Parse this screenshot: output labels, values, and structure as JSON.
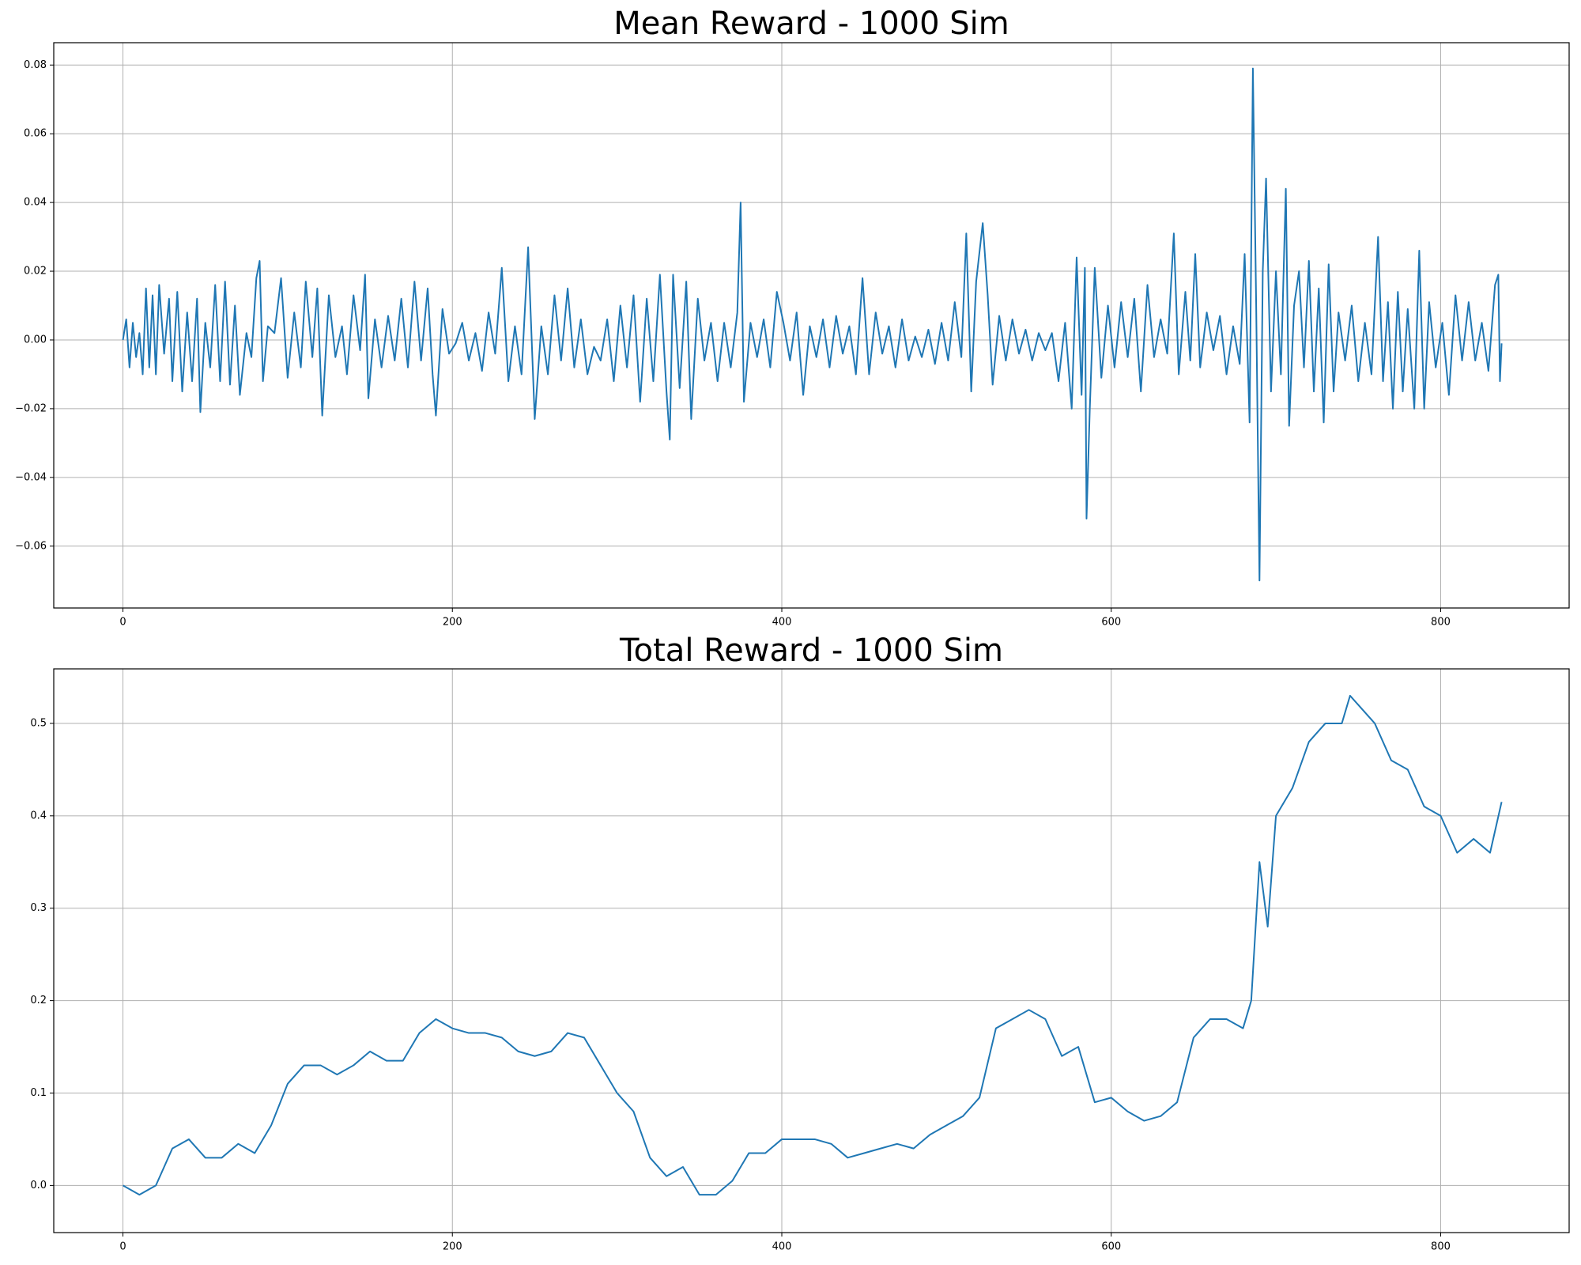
{
  "chart_data": [
    {
      "type": "line",
      "title": "Mean Reward - 1000 Sim",
      "grid": true,
      "xlim": [
        -42,
        878
      ],
      "xticks": [
        0,
        200,
        400,
        600,
        800
      ],
      "ylim": [
        -0.078,
        0.0865
      ],
      "yticks": [
        {
          "value": -0.06,
          "label": "−0.06"
        },
        {
          "value": -0.04,
          "label": "−0.04"
        },
        {
          "value": -0.02,
          "label": "−0.02"
        },
        {
          "value": 0,
          "label": "0.00"
        },
        0.02,
        0.04,
        0.06,
        0.08
      ],
      "x": [
        0,
        2,
        4,
        6,
        8,
        10,
        12,
        14,
        16,
        18,
        20,
        22,
        25,
        28,
        30,
        33,
        36,
        39,
        42,
        45,
        47,
        50,
        53,
        56,
        59,
        62,
        65,
        68,
        71,
        75,
        78,
        81,
        83,
        85,
        88,
        92,
        96,
        100,
        104,
        108,
        111,
        115,
        118,
        121,
        125,
        129,
        133,
        136,
        140,
        144,
        147,
        149,
        153,
        157,
        161,
        165,
        169,
        173,
        177,
        181,
        185,
        188,
        190,
        194,
        198,
        202,
        206,
        210,
        214,
        218,
        222,
        226,
        230,
        234,
        238,
        242,
        246,
        250,
        254,
        258,
        262,
        266,
        270,
        274,
        278,
        282,
        286,
        290,
        294,
        298,
        302,
        306,
        310,
        314,
        318,
        322,
        326,
        330,
        332,
        334,
        338,
        342,
        345,
        349,
        353,
        357,
        361,
        365,
        369,
        373,
        375,
        377,
        381,
        385,
        389,
        393,
        397,
        401,
        405,
        409,
        413,
        417,
        421,
        425,
        429,
        433,
        437,
        441,
        445,
        449,
        453,
        457,
        461,
        465,
        469,
        473,
        477,
        481,
        485,
        489,
        493,
        497,
        501,
        505,
        509,
        512,
        515,
        518,
        522,
        525,
        528,
        532,
        536,
        540,
        544,
        548,
        552,
        556,
        560,
        564,
        568,
        572,
        576,
        579,
        582,
        584,
        585,
        587,
        590,
        594,
        598,
        602,
        606,
        610,
        614,
        618,
        622,
        626,
        630,
        634,
        638,
        641,
        645,
        648,
        651,
        654,
        658,
        662,
        666,
        670,
        674,
        678,
        681,
        684,
        686,
        688,
        690,
        692,
        694,
        697,
        700,
        703,
        706,
        708,
        711,
        714,
        717,
        720,
        723,
        726,
        729,
        732,
        735,
        738,
        742,
        746,
        750,
        754,
        758,
        762,
        765,
        768,
        771,
        774,
        777,
        780,
        784,
        787,
        790,
        793,
        797,
        801,
        805,
        809,
        813,
        817,
        821,
        825,
        829,
        833,
        835,
        836,
        837
      ],
      "series": [
        {
          "name": "mean",
          "color": "#1f77b4",
          "values": [
            0,
            0.006,
            -0.008,
            0.005,
            -0.005,
            0.002,
            -0.01,
            0.015,
            -0.008,
            0.013,
            -0.01,
            0.016,
            -0.004,
            0.012,
            -0.012,
            0.014,
            -0.015,
            0.008,
            -0.012,
            0.012,
            -0.021,
            0.005,
            -0.008,
            0.016,
            -0.012,
            0.017,
            -0.013,
            0.01,
            -0.016,
            0.002,
            -0.005,
            0.018,
            0.023,
            -0.012,
            0.004,
            0.002,
            0.018,
            -0.011,
            0.008,
            -0.008,
            0.017,
            -0.005,
            0.015,
            -0.022,
            0.013,
            -0.005,
            0.004,
            -0.01,
            0.013,
            -0.003,
            0.019,
            -0.017,
            0.006,
            -0.008,
            0.007,
            -0.006,
            0.012,
            -0.008,
            0.017,
            -0.006,
            0.015,
            -0.01,
            -0.022,
            0.009,
            -0.004,
            -0.001,
            0.005,
            -0.006,
            0.002,
            -0.009,
            0.008,
            -0.004,
            0.021,
            -0.012,
            0.004,
            -0.01,
            0.027,
            -0.023,
            0.004,
            -0.01,
            0.013,
            -0.006,
            0.015,
            -0.008,
            0.006,
            -0.01,
            -0.002,
            -0.006,
            0.006,
            -0.012,
            0.01,
            -0.008,
            0.013,
            -0.018,
            0.012,
            -0.012,
            0.019,
            -0.015,
            -0.029,
            0.019,
            -0.014,
            0.017,
            -0.023,
            0.012,
            -0.006,
            0.005,
            -0.012,
            0.005,
            -0.008,
            0.008,
            0.04,
            -0.018,
            0.005,
            -0.005,
            0.006,
            -0.008,
            0.014,
            0.005,
            -0.006,
            0.008,
            -0.016,
            0.004,
            -0.005,
            0.006,
            -0.008,
            0.007,
            -0.004,
            0.004,
            -0.01,
            0.018,
            -0.01,
            0.008,
            -0.004,
            0.004,
            -0.008,
            0.006,
            -0.006,
            0.001,
            -0.005,
            0.003,
            -0.007,
            0.005,
            -0.006,
            0.011,
            -0.005,
            0.031,
            -0.015,
            0.017,
            0.034,
            0.013,
            -0.013,
            0.007,
            -0.006,
            0.006,
            -0.004,
            0.003,
            -0.006,
            0.002,
            -0.003,
            0.002,
            -0.012,
            0.005,
            -0.02,
            0.024,
            -0.016,
            0.021,
            -0.052,
            -0.02,
            0.021,
            -0.011,
            0.01,
            -0.008,
            0.011,
            -0.005,
            0.012,
            -0.015,
            0.016,
            -0.005,
            0.006,
            -0.004,
            0.031,
            -0.01,
            0.014,
            -0.006,
            0.025,
            -0.008,
            0.008,
            -0.003,
            0.007,
            -0.01,
            0.004,
            -0.007,
            0.025,
            -0.024,
            0.079,
            0.01,
            -0.07,
            0.02,
            0.047,
            -0.015,
            0.02,
            -0.01,
            0.044,
            -0.025,
            0.01,
            0.02,
            -0.008,
            0.023,
            -0.015,
            0.015,
            -0.024,
            0.022,
            -0.015,
            0.008,
            -0.006,
            0.01,
            -0.012,
            0.005,
            -0.01,
            0.03,
            -0.012,
            0.011,
            -0.02,
            0.014,
            -0.015,
            0.009,
            -0.02,
            0.026,
            -0.02,
            0.011,
            -0.008,
            0.005,
            -0.016,
            0.013,
            -0.006,
            0.011,
            -0.006,
            0.005,
            -0.009,
            0.016,
            0.019,
            -0.012,
            -0.001
          ]
        }
      ]
    },
    {
      "type": "line",
      "title": "Total Reward - 1000 Sim",
      "grid": true,
      "xlim": [
        -42,
        878
      ],
      "xticks": [
        0,
        200,
        400,
        600,
        800
      ],
      "ylim": [
        -0.051,
        0.559
      ],
      "yticks": [
        {
          "value": 0,
          "label": "0.0"
        },
        0.1,
        0.2,
        0.3,
        0.4,
        0.5
      ],
      "x": [
        0,
        10,
        20,
        30,
        40,
        50,
        60,
        70,
        80,
        90,
        100,
        110,
        120,
        130,
        140,
        150,
        160,
        170,
        180,
        190,
        200,
        210,
        220,
        230,
        240,
        250,
        260,
        270,
        280,
        290,
        300,
        310,
        320,
        330,
        340,
        350,
        360,
        370,
        380,
        390,
        400,
        410,
        420,
        430,
        440,
        450,
        460,
        470,
        480,
        490,
        500,
        510,
        520,
        530,
        540,
        550,
        560,
        570,
        580,
        590,
        600,
        610,
        620,
        630,
        640,
        650,
        660,
        670,
        680,
        685,
        690,
        695,
        700,
        710,
        720,
        730,
        740,
        745,
        750,
        760,
        770,
        780,
        790,
        800,
        810,
        820,
        830,
        837
      ],
      "series": [
        {
          "name": "total",
          "color": "#1f77b4",
          "values": [
            0,
            -0.01,
            0,
            0.04,
            0.05,
            0.03,
            0.03,
            0.045,
            0.035,
            0.065,
            0.11,
            0.13,
            0.13,
            0.12,
            0.13,
            0.145,
            0.135,
            0.135,
            0.165,
            0.18,
            0.17,
            0.165,
            0.165,
            0.16,
            0.145,
            0.14,
            0.145,
            0.165,
            0.16,
            0.13,
            0.1,
            0.08,
            0.03,
            0.01,
            0.02,
            -0.01,
            -0.01,
            0.005,
            0.035,
            0.035,
            0.05,
            0.05,
            0.05,
            0.045,
            0.03,
            0.035,
            0.04,
            0.045,
            0.04,
            0.055,
            0.065,
            0.075,
            0.095,
            0.17,
            0.18,
            0.19,
            0.18,
            0.14,
            0.15,
            0.09,
            0.095,
            0.08,
            0.07,
            0.075,
            0.09,
            0.16,
            0.18,
            0.18,
            0.17,
            0.2,
            0.35,
            0.28,
            0.4,
            0.43,
            0.48,
            0.5,
            0.5,
            0.53,
            0.52,
            0.5,
            0.46,
            0.45,
            0.41,
            0.4,
            0.36,
            0.375,
            0.36,
            0.415
          ]
        }
      ]
    }
  ]
}
